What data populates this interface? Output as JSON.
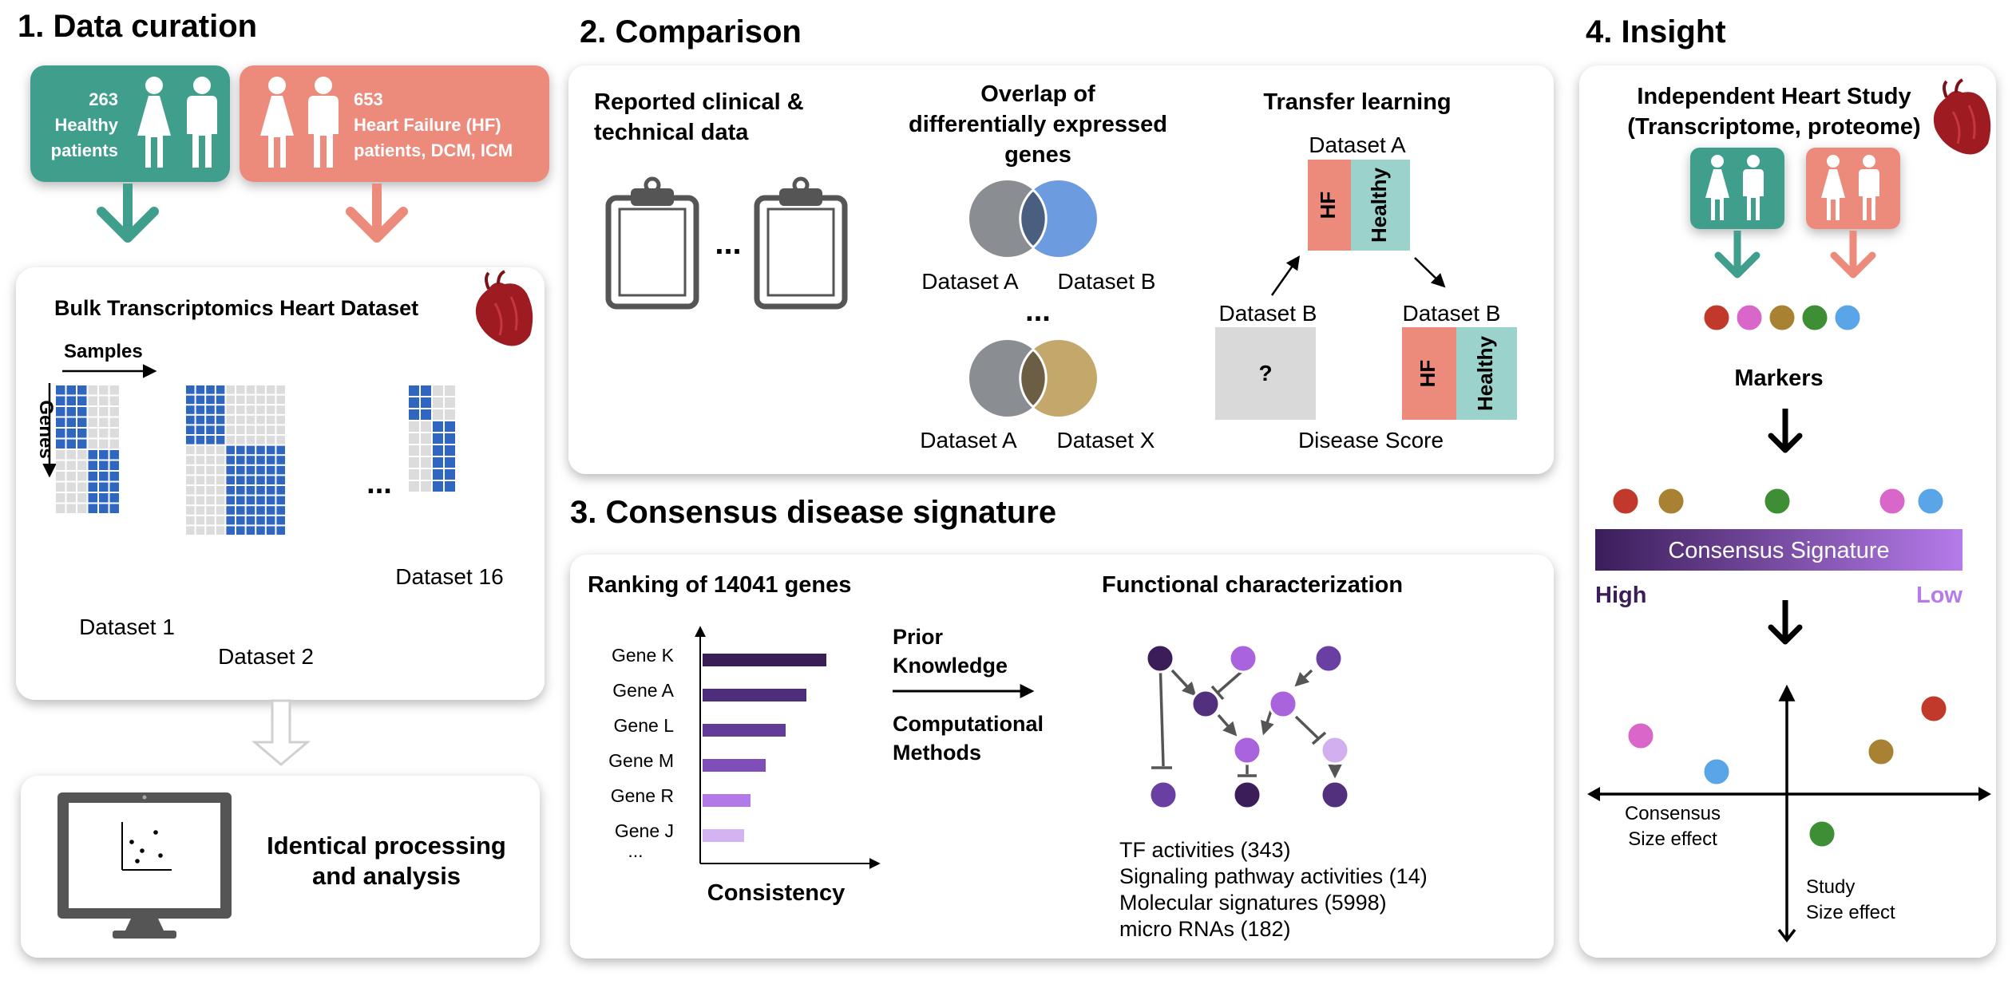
{
  "colors": {
    "healthy": "#3f9e8c",
    "hf": "#ec8a7b",
    "matrix_on": "#2f67c0",
    "matrix_off": "#dcdcdc",
    "gradient_high": "#3b1d5a",
    "gradient_low": "#b57bea",
    "heart": "#9e1b22",
    "marker_red": "#c0392b",
    "marker_pink": "#d966c9",
    "marker_brown": "#a88232",
    "marker_green": "#3d8e35",
    "marker_blue": "#5aa5e8"
  },
  "section1": {
    "title": "1. Data curation",
    "healthy_card": {
      "count": "263",
      "line1": "Healthy",
      "line2": "patients",
      "icon": "male-female-person-icons"
    },
    "hf_card": {
      "count": "653",
      "line1": "Heart Failure (HF)",
      "line2": "patients, DCM, ICM",
      "icon": "male-female-person-icons"
    },
    "dataset_panel": {
      "title": "Bulk Transcriptomics Heart Dataset",
      "samples_label": "Samples",
      "genes_label": "Genes",
      "dataset1": "Dataset 1",
      "dataset2": "Dataset 2",
      "ellipsis": "...",
      "dataset16": "Dataset 16",
      "heart_icon": "heart-icon"
    },
    "processing": {
      "line1": "Identical processing",
      "line2": "and analysis",
      "icon": "monitor-icon"
    }
  },
  "section2": {
    "title": "2. Comparison",
    "clinical": {
      "line1": "Reported clinical &",
      "line2": "technical data",
      "ellipsis": "..."
    },
    "overlap": {
      "line1": "Overlap of",
      "line2": "differentially expressed",
      "line3": "genes",
      "venn1_left": "Dataset A",
      "venn1_right": "Dataset B",
      "ellipsis": "...",
      "venn2_left": "Dataset A",
      "venn2_right": "Dataset X"
    },
    "transfer": {
      "title": "Transfer learning",
      "dataset_a": "Dataset A",
      "hf": "HF",
      "healthy": "Healthy",
      "dataset_b_left": "Dataset B",
      "question": "?",
      "dataset_b_right": "Dataset B",
      "disease_score": "Disease Score"
    }
  },
  "section3": {
    "title": "3. Consensus disease signature",
    "ranking_title": "Ranking of 14041 genes",
    "genes": [
      "Gene K",
      "Gene A",
      "Gene L",
      "Gene M",
      "Gene R",
      "Gene J"
    ],
    "gene_ellipsis": "...",
    "x_label": "Consistency",
    "arrow_top_line1": "Prior",
    "arrow_top_line2": "Knowledge",
    "arrow_bottom_line1": "Computational",
    "arrow_bottom_line2": "Methods",
    "functional_title": "Functional characterization",
    "results": [
      "TF activities (343)",
      "Signaling pathway activities (14)",
      "Molecular signatures (5998)",
      "micro RNAs (182)"
    ]
  },
  "section4": {
    "title": "4. Insight",
    "study_line1": "Independent Heart Study",
    "study_line2": "(Transcriptome, proteome)",
    "markers": "Markers",
    "consensus_signature": "Consensus Signature",
    "high": "High",
    "low": "Low",
    "x_axis_line1": "Consensus",
    "x_axis_line2": "Size effect",
    "y_axis_line1": "Study",
    "y_axis_line2": "Size effect"
  }
}
